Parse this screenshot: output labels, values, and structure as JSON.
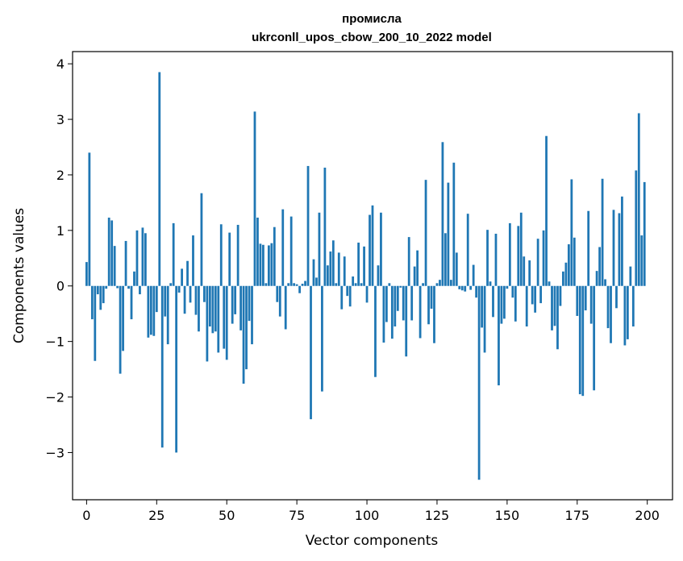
{
  "chart_data": {
    "type": "bar",
    "title": [
      "промисла",
      "ukrconll_upos_cbow_200_10_2022 model"
    ],
    "xlabel": "Vector components",
    "ylabel": "Components values",
    "xlim": [
      -5,
      209
    ],
    "ylim": [
      -3.85,
      4.22
    ],
    "xticks": [
      0,
      25,
      50,
      75,
      100,
      125,
      150,
      175,
      200
    ],
    "yticks": [
      -3,
      -2,
      -1,
      0,
      1,
      2,
      3,
      4
    ],
    "ytick_labels": [
      "−3",
      "−2",
      "−1",
      "0",
      "1",
      "2",
      "3",
      "4"
    ],
    "bar_color": "#1f77b4",
    "grid": false,
    "legend": "none",
    "x": [
      0,
      1,
      2,
      3,
      4,
      5,
      6,
      7,
      8,
      9,
      10,
      11,
      12,
      13,
      14,
      15,
      16,
      17,
      18,
      19,
      20,
      21,
      22,
      23,
      24,
      25,
      26,
      27,
      28,
      29,
      30,
      31,
      32,
      33,
      34,
      35,
      36,
      37,
      38,
      39,
      40,
      41,
      42,
      43,
      44,
      45,
      46,
      47,
      48,
      49,
      50,
      51,
      52,
      53,
      54,
      55,
      56,
      57,
      58,
      59,
      60,
      61,
      62,
      63,
      64,
      65,
      66,
      67,
      68,
      69,
      70,
      71,
      72,
      73,
      74,
      75,
      76,
      77,
      78,
      79,
      80,
      81,
      82,
      83,
      84,
      85,
      86,
      87,
      88,
      89,
      90,
      91,
      92,
      93,
      94,
      95,
      96,
      97,
      98,
      99,
      100,
      101,
      102,
      103,
      104,
      105,
      106,
      107,
      108,
      109,
      110,
      111,
      112,
      113,
      114,
      115,
      116,
      117,
      118,
      119,
      120,
      121,
      122,
      123,
      124,
      125,
      126,
      127,
      128,
      129,
      130,
      131,
      132,
      133,
      134,
      135,
      136,
      137,
      138,
      139,
      140,
      141,
      142,
      143,
      144,
      145,
      146,
      147,
      148,
      149,
      150,
      151,
      152,
      153,
      154,
      155,
      156,
      157,
      158,
      159,
      160,
      161,
      162,
      163,
      164,
      165,
      166,
      167,
      168,
      169,
      170,
      171,
      172,
      173,
      174,
      175,
      176,
      177,
      178,
      179,
      180,
      181,
      182,
      183,
      184,
      185,
      186,
      187,
      188,
      189,
      190,
      191,
      192,
      193,
      194,
      195,
      196,
      197,
      198,
      199
    ],
    "values": [
      0.43,
      2.4,
      -0.6,
      -1.35,
      -0.15,
      -0.43,
      -0.31,
      -0.05,
      1.23,
      1.18,
      0.72,
      -0.04,
      -1.58,
      -1.17,
      0.81,
      -0.05,
      -0.6,
      0.26,
      1.0,
      -0.15,
      1.05,
      0.95,
      -0.93,
      -0.88,
      -0.9,
      -0.47,
      3.85,
      -2.91,
      -0.55,
      -1.05,
      0.05,
      1.13,
      -3.0,
      -0.12,
      0.31,
      -0.5,
      0.45,
      -0.3,
      0.91,
      -0.52,
      -0.82,
      1.67,
      -0.29,
      -1.36,
      -0.73,
      -0.85,
      -0.82,
      -1.2,
      1.11,
      -1.13,
      -1.33,
      0.96,
      -0.68,
      -0.51,
      1.1,
      -0.8,
      -1.76,
      -1.5,
      -0.63,
      -1.05,
      3.14,
      1.23,
      0.76,
      0.74,
      0.05,
      0.73,
      0.77,
      1.06,
      -0.29,
      -0.55,
      1.38,
      -0.78,
      0.05,
      1.25,
      0.05,
      0.03,
      -0.13,
      0.04,
      0.09,
      2.16,
      -2.4,
      0.48,
      0.15,
      1.32,
      -1.9,
      2.13,
      0.37,
      0.62,
      0.82,
      0.05,
      0.6,
      -0.42,
      0.53,
      -0.18,
      -0.37,
      0.17,
      0.05,
      0.78,
      0.05,
      0.71,
      -0.3,
      1.28,
      1.45,
      -1.64,
      0.37,
      1.32,
      -1.02,
      -0.65,
      0.05,
      -0.95,
      -0.73,
      -0.45,
      -0.03,
      -0.62,
      -1.27,
      0.88,
      -0.62,
      0.35,
      0.64,
      -0.94,
      0.05,
      1.91,
      -0.69,
      -0.41,
      -1.03,
      0.05,
      0.11,
      2.59,
      0.95,
      1.86,
      0.11,
      2.22,
      0.6,
      -0.06,
      -0.08,
      -0.1,
      1.3,
      -0.07,
      0.38,
      -0.21,
      -3.49,
      -0.75,
      -1.2,
      1.01,
      0.08,
      -0.56,
      0.94,
      -1.79,
      -0.68,
      -0.59,
      -0.05,
      1.13,
      -0.21,
      -0.64,
      1.08,
      1.32,
      0.53,
      -0.73,
      0.46,
      -0.33,
      -0.48,
      0.85,
      -0.31,
      1.0,
      2.7,
      0.08,
      -0.8,
      -0.72,
      -1.14,
      -0.36,
      0.26,
      0.42,
      0.75,
      1.92,
      0.87,
      -0.54,
      -1.95,
      -1.98,
      -0.44,
      1.35,
      -0.68,
      -1.88,
      0.27,
      0.7,
      1.93,
      0.12,
      -0.76,
      -1.03,
      1.37,
      -0.4,
      1.31,
      1.61,
      -1.07,
      -0.96,
      0.35,
      -0.73,
      2.08,
      3.11,
      0.91,
      1.87
    ]
  }
}
